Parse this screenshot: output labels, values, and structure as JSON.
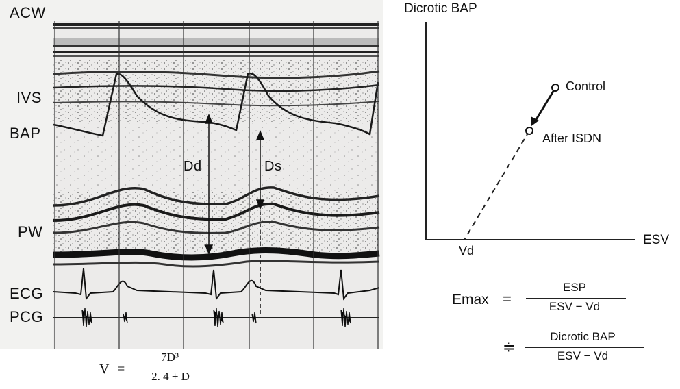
{
  "echo_panel": {
    "labels": {
      "acw": "ACW",
      "ivs": "IVS",
      "bap": "BAP",
      "pw": "PW",
      "ecg": "ECG",
      "pcg": "PCG",
      "dd": "Dd",
      "ds": "Ds"
    },
    "formula": {
      "lhs": "V",
      "eq": "=",
      "numerator": "7D³",
      "denominator": "2. 4 + D"
    }
  },
  "graph": {
    "y_axis_label": "Dicrotic BAP",
    "x_axis_label": "ESV",
    "intercept_label": "Vd",
    "control_label": "Control",
    "after_label": "After ISDN"
  },
  "emax_formula": {
    "lhs": "Emax",
    "eq1": "=",
    "num1": "ESP",
    "den1": "ESV − Vd",
    "eq2": "≑",
    "num2": "Dicrotic BAP",
    "den2": "ESV − Vd"
  }
}
